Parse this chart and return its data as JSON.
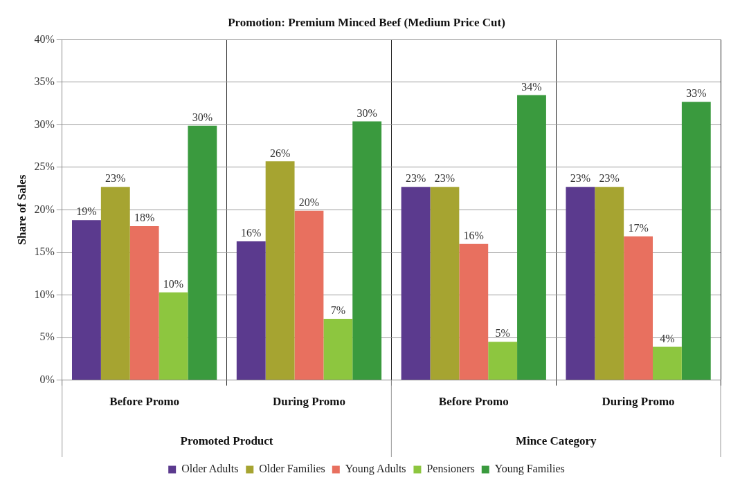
{
  "chart_data": {
    "type": "bar",
    "title": "Promotion: Premium Minced Beef (Medium Price Cut)",
    "ylabel": "Share of Sales",
    "categories": [
      "Before Promo",
      "During Promo",
      "Before Promo",
      "During Promo"
    ],
    "annotations": [
      "Promoted Product",
      "Mince Category"
    ],
    "series": [
      {
        "name": "Older Adults",
        "color": "#5b3a8e",
        "values": [
          18.8,
          16.3,
          22.7,
          22.7
        ],
        "value_labels": [
          "19%",
          "16%",
          "23%",
          "23%"
        ]
      },
      {
        "name": "Older Families",
        "color": "#a6a431",
        "values": [
          22.7,
          25.7,
          22.7,
          22.7
        ],
        "value_labels": [
          "23%",
          "26%",
          "23%",
          "23%"
        ]
      },
      {
        "name": "Young Adults",
        "color": "#e8705f",
        "values": [
          18.1,
          19.9,
          16.0,
          16.9
        ],
        "value_labels": [
          "18%",
          "20%",
          "16%",
          "17%"
        ]
      },
      {
        "name": "Pensioners",
        "color": "#8dc63f",
        "values": [
          10.3,
          7.2,
          4.5,
          3.9
        ],
        "value_labels": [
          "10%",
          "7%",
          "5%",
          "4%"
        ]
      },
      {
        "name": "Young Families",
        "color": "#3a9a3e",
        "values": [
          29.9,
          30.4,
          33.5,
          32.7
        ],
        "value_labels": [
          "30%",
          "30%",
          "34%",
          "33%"
        ]
      }
    ],
    "ylim": [
      0,
      40
    ],
    "yticks": [
      {
        "value": 0,
        "label": "0%"
      },
      {
        "value": 5,
        "label": "5%"
      },
      {
        "value": 10,
        "label": "10%"
      },
      {
        "value": 15,
        "label": "15%"
      },
      {
        "value": 20,
        "label": "20%"
      },
      {
        "value": 25,
        "label": "25%"
      },
      {
        "value": 30,
        "label": "30%"
      },
      {
        "value": 35,
        "label": "35%"
      },
      {
        "value": 40,
        "label": "40%"
      }
    ],
    "grid": true,
    "legend": "bottom"
  }
}
